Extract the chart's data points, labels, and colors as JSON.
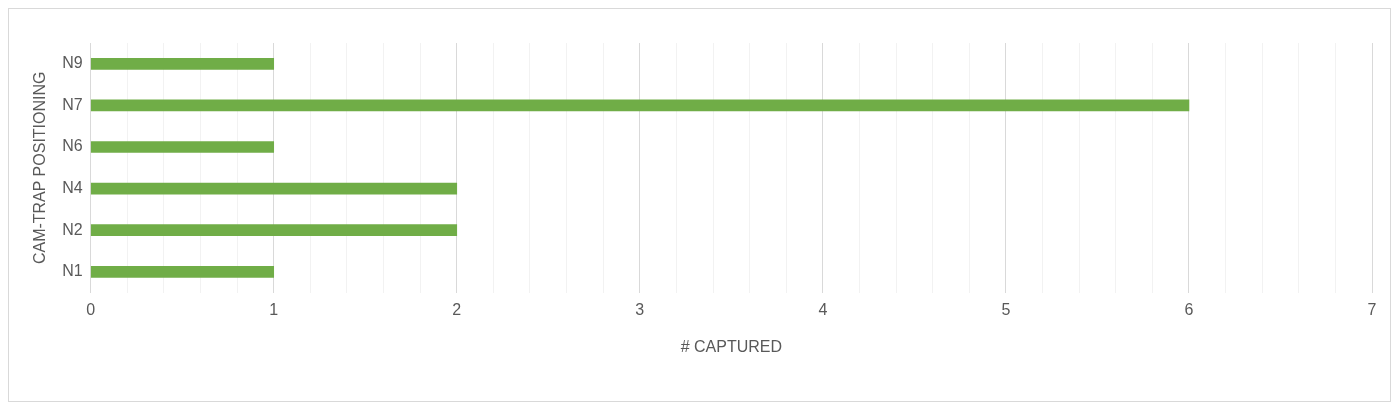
{
  "chart_data": {
    "type": "bar",
    "orientation": "horizontal",
    "xlabel": "# CAPTURED",
    "ylabel": "CAM-TRAP POSITIONING",
    "categories": [
      "N9",
      "N7",
      "N6",
      "N4",
      "N2",
      "N1"
    ],
    "values": [
      1,
      6,
      1,
      2,
      2,
      1
    ],
    "color": "#70ad47",
    "xlim": [
      0,
      7
    ],
    "xticks": [
      0,
      {
        "value": 0.2,
        "label": null
      },
      {
        "value": 0.4,
        "label": null
      },
      {
        "value": 0.6,
        "label": null
      },
      {
        "value": 0.8,
        "label": null
      },
      1,
      {
        "value": 1.2,
        "label": null
      },
      {
        "value": 1.4,
        "label": null
      },
      {
        "value": 1.6,
        "label": null
      },
      {
        "value": 1.8,
        "label": null
      },
      2,
      {
        "value": 2.2,
        "label": null
      },
      {
        "value": 2.4,
        "label": null
      },
      {
        "value": 2.6,
        "label": null
      },
      {
        "value": 2.8,
        "label": null
      },
      3,
      {
        "value": 3.2,
        "label": null
      },
      {
        "value": 3.4,
        "label": null
      },
      {
        "value": 3.6,
        "label": null
      },
      {
        "value": 3.8,
        "label": null
      },
      4,
      {
        "value": 4.2,
        "label": null
      },
      {
        "value": 4.4,
        "label": null
      },
      {
        "value": 4.6,
        "label": null
      },
      {
        "value": 4.8,
        "label": null
      },
      5,
      {
        "value": 5.2,
        "label": null
      },
      {
        "value": 5.4,
        "label": null
      },
      {
        "value": 5.6,
        "label": null
      },
      {
        "value": 5.8,
        "label": null
      },
      6,
      {
        "value": 6.2,
        "label": null
      },
      {
        "value": 6.4,
        "label": null
      },
      {
        "value": 6.6,
        "label": null
      },
      {
        "value": 6.8,
        "label": null
      },
      7
    ],
    "grid": "x",
    "legend": false
  }
}
